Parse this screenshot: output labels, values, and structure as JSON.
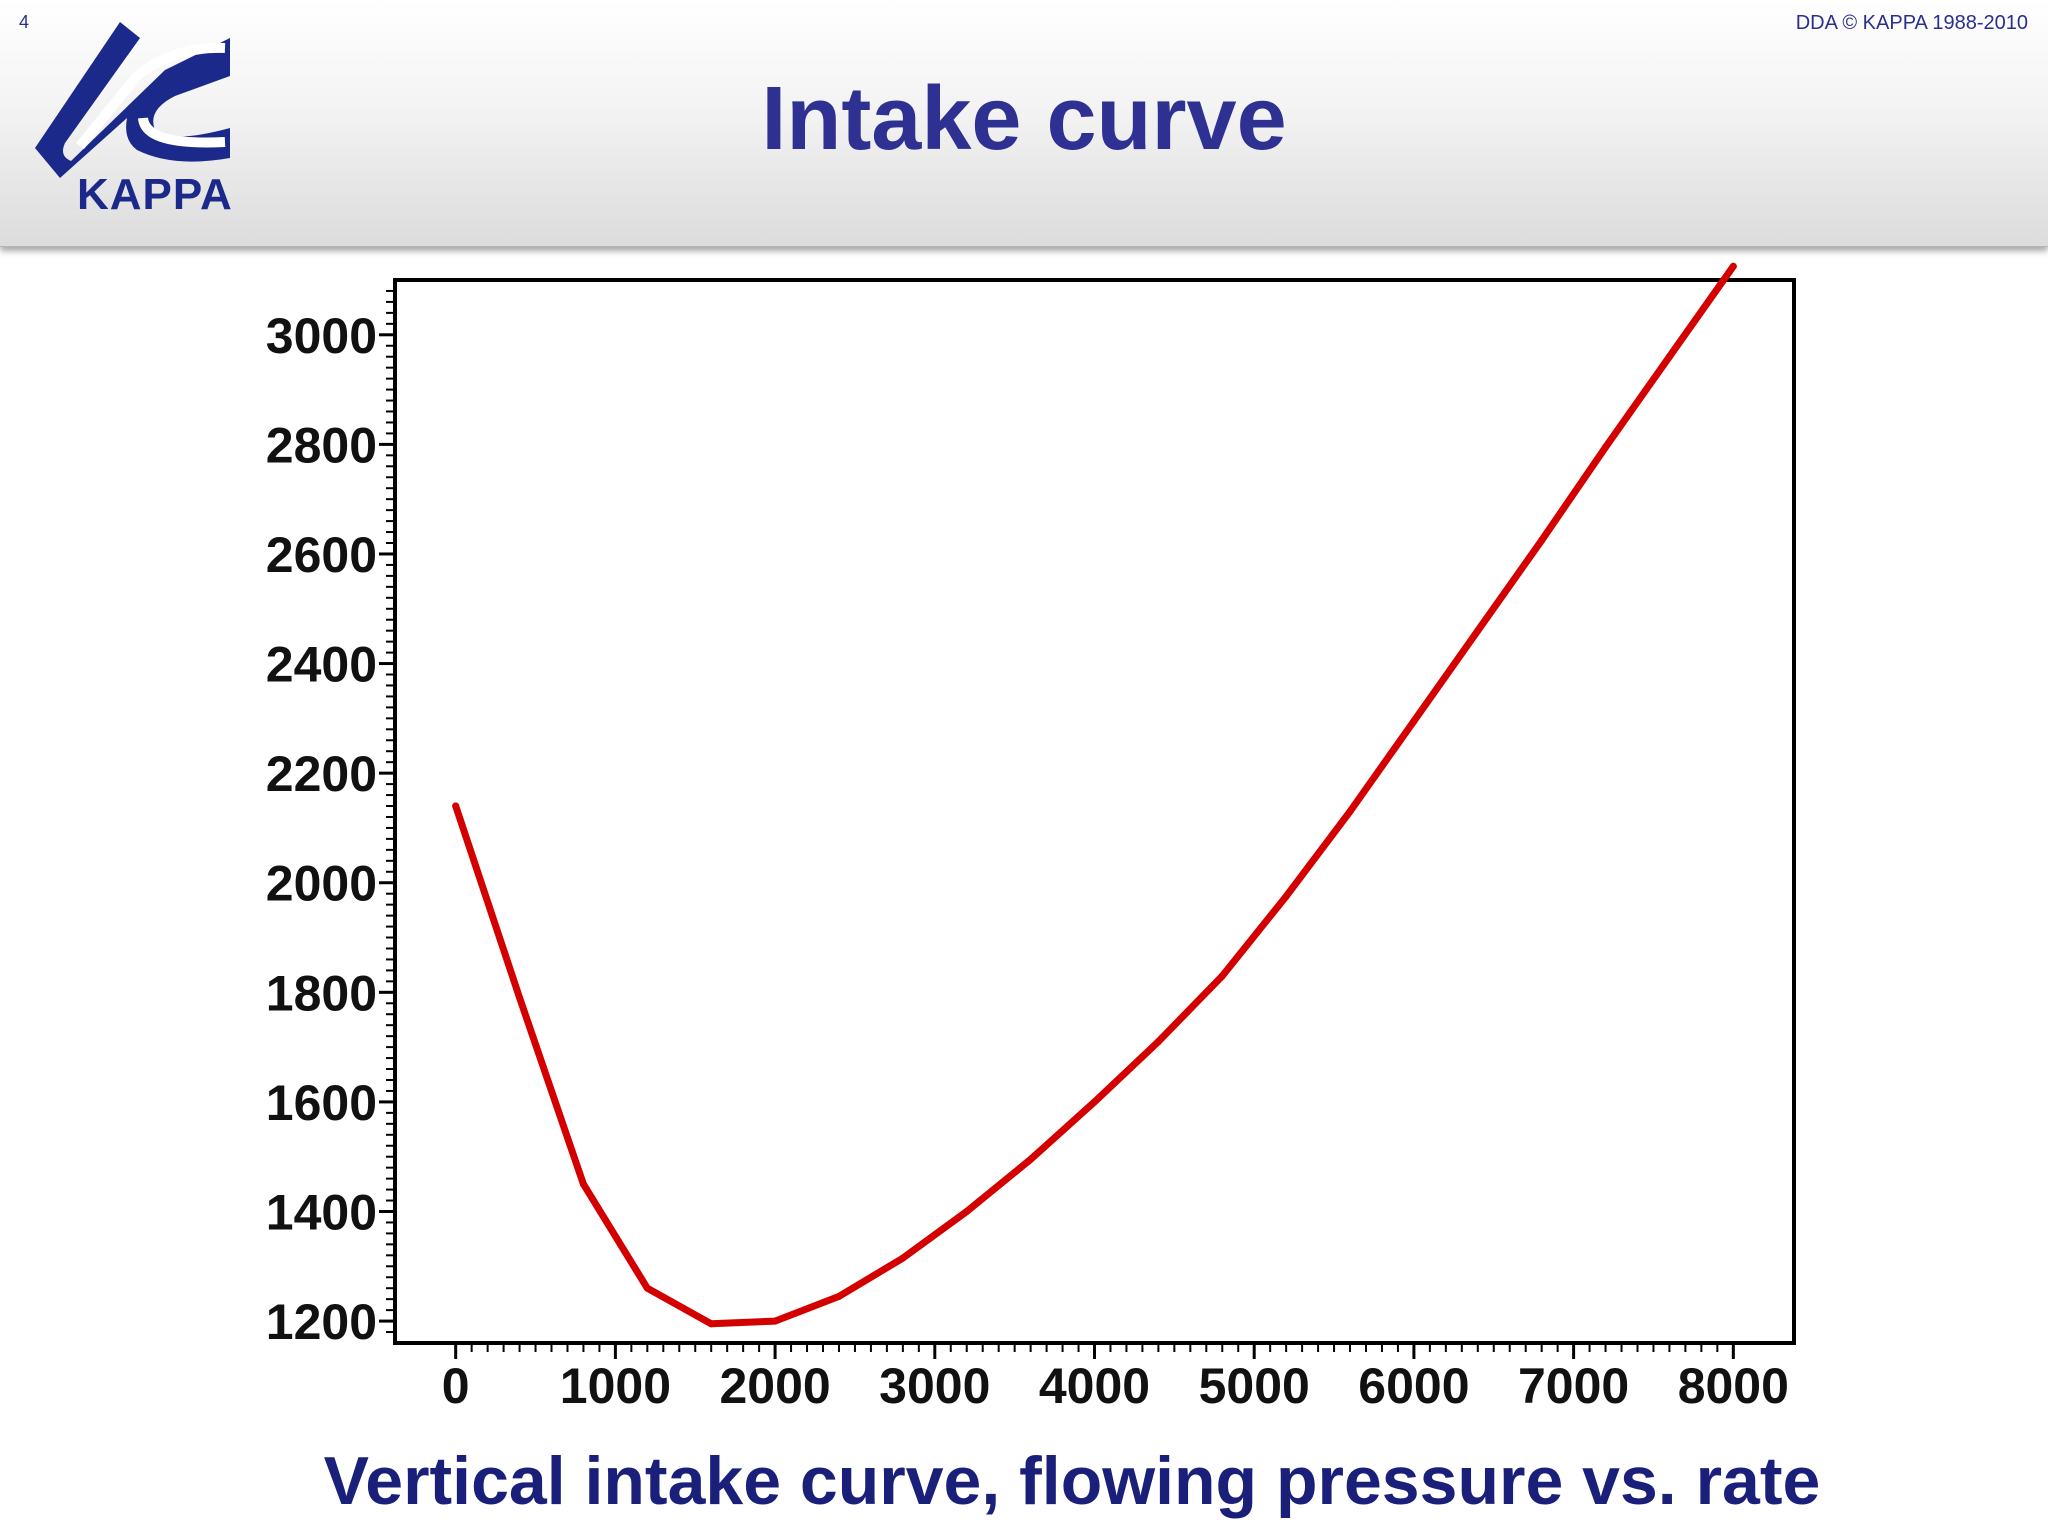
{
  "slide": {
    "number": "4",
    "copyright": "DDA © KAPPA 1988-2010",
    "logo_text": "KAPPA",
    "title": "Intake curve",
    "caption": "Vertical intake curve, flowing pressure vs. rate"
  },
  "colors": {
    "title": "#2e3192",
    "curve": "#d40000"
  },
  "chart_data": {
    "type": "line",
    "title": "",
    "xlabel": "",
    "ylabel": "",
    "xlim": [
      -380,
      8380
    ],
    "ylim": [
      1160,
      3100
    ],
    "xticks": [
      0,
      1000,
      2000,
      3000,
      4000,
      5000,
      6000,
      7000,
      8000
    ],
    "yticks": [
      1200,
      1400,
      1600,
      1800,
      2000,
      2200,
      2400,
      2600,
      2800,
      3000
    ],
    "grid": false,
    "series": [
      {
        "name": "Intake curve",
        "x": [
          0,
          400,
          800,
          1200,
          1600,
          2000,
          2400,
          2800,
          3200,
          3600,
          4000,
          4400,
          4800,
          5200,
          5600,
          6000,
          6400,
          6800,
          7200,
          7600,
          8000
        ],
        "y": [
          2140,
          1790,
          1450,
          1260,
          1195,
          1200,
          1245,
          1315,
          1400,
          1495,
          1600,
          1710,
          1830,
          1975,
          2130,
          2295,
          2460,
          2625,
          2795,
          2960,
          3125
        ]
      }
    ]
  }
}
